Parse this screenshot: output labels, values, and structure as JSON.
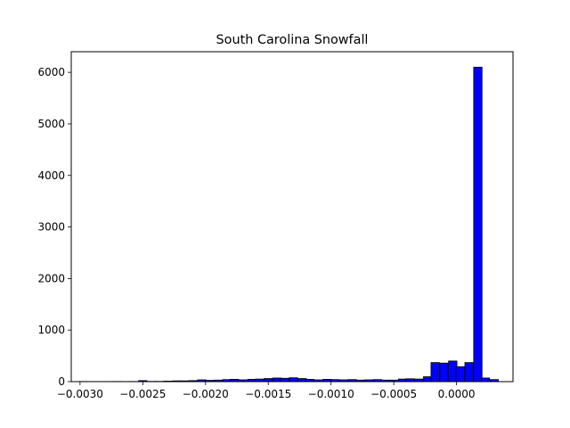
{
  "chart_data": {
    "type": "bar",
    "title": "South Carolina Snowfall",
    "xlabel": "",
    "ylabel": "",
    "xlim": [
      -0.00307,
      0.00045
    ],
    "ylim": [
      0,
      6400
    ],
    "grid": false,
    "bar_color": "#0000ff",
    "edge_color": "#000000",
    "bin_width": 6.67e-05,
    "x_ticks": [
      {
        "value": -0.003,
        "label": "−0.0030"
      },
      {
        "value": -0.0025,
        "label": "−0.0025"
      },
      {
        "value": -0.002,
        "label": "−0.0020"
      },
      {
        "value": -0.0015,
        "label": "−0.0015"
      },
      {
        "value": -0.001,
        "label": "−0.0010"
      },
      {
        "value": -0.0005,
        "label": "−0.0005"
      },
      {
        "value": 0.0,
        "label": "0.0000"
      }
    ],
    "y_ticks": [
      {
        "value": 0,
        "label": "0"
      },
      {
        "value": 1000,
        "label": "1000"
      },
      {
        "value": 2000,
        "label": "2000"
      },
      {
        "value": 3000,
        "label": "3000"
      },
      {
        "value": 4000,
        "label": "4000"
      },
      {
        "value": 5000,
        "label": "5000"
      },
      {
        "value": 6000,
        "label": "6000"
      }
    ],
    "x": [
      -0.00297,
      -0.0029,
      -0.00283,
      -0.00277,
      -0.0027,
      -0.00263,
      -0.00257,
      -0.0025,
      -0.00243,
      -0.00237,
      -0.0023,
      -0.00223,
      -0.00217,
      -0.0021,
      -0.00203,
      -0.00197,
      -0.0019,
      -0.00183,
      -0.00177,
      -0.0017,
      -0.00163,
      -0.00157,
      -0.0015,
      -0.00143,
      -0.00137,
      -0.0013,
      -0.00123,
      -0.00117,
      -0.0011,
      -0.00103,
      -0.00097,
      -0.0009,
      -0.00083,
      -0.00077,
      -0.0007,
      -0.00063,
      -0.00057,
      -0.0005,
      -0.00043,
      -0.00037,
      -0.0003,
      -0.00023,
      -0.00017,
      -0.0001,
      -3e-05,
      3e-05,
      0.0001,
      0.00017,
      0.00023,
      0.0003
    ],
    "values": [
      3,
      2,
      2,
      2,
      3,
      2,
      3,
      20,
      5,
      5,
      10,
      15,
      15,
      20,
      35,
      25,
      30,
      40,
      45,
      35,
      45,
      50,
      60,
      70,
      65,
      75,
      60,
      45,
      35,
      45,
      40,
      35,
      40,
      30,
      35,
      40,
      30,
      30,
      50,
      55,
      50,
      95,
      370,
      360,
      400,
      290,
      370,
      6100,
      70,
      40
    ]
  }
}
